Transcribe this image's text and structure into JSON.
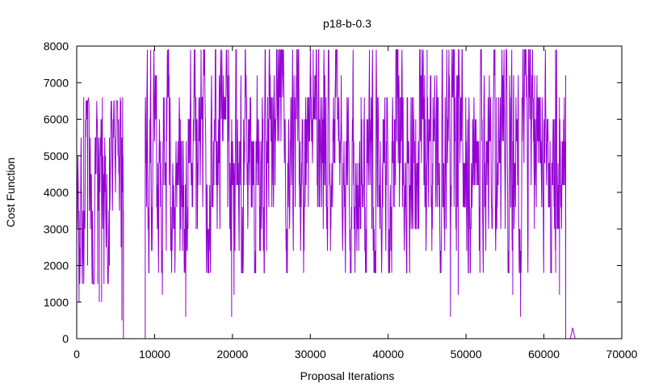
{
  "chart_data": {
    "type": "line",
    "title": "p18-b-0.3",
    "xlabel": "Proposal Iterations",
    "ylabel": "Cost Function",
    "xlim": [
      0,
      70000
    ],
    "ylim": [
      0,
      8000
    ],
    "x_ticks": [
      0,
      10000,
      20000,
      30000,
      40000,
      50000,
      60000,
      70000
    ],
    "y_ticks": [
      0,
      1000,
      2000,
      3000,
      4000,
      5000,
      6000,
      7000,
      8000
    ],
    "x_tick_labels": [
      "0",
      "10000",
      "20000",
      "30000",
      "40000",
      "50000",
      "60000",
      "70000"
    ],
    "y_tick_labels": [
      "0",
      "1000",
      "2000",
      "3000",
      "4000",
      "5000",
      "6000",
      "7000",
      "8000"
    ],
    "grid": false,
    "legend": "none",
    "series_color": "#9400d3",
    "segments": [
      {
        "x_range": [
          0,
          6000
        ],
        "low_spikes": [
          {
            "x": 300,
            "y": 1000
          },
          {
            "x": 900,
            "y": 2000
          },
          {
            "x": 1400,
            "y": 2000
          },
          {
            "x": 2700,
            "y": 1500
          },
          {
            "x": 2900,
            "y": 1000
          },
          {
            "x": 3200,
            "y": 1000
          },
          {
            "x": 3500,
            "y": 1500
          },
          {
            "x": 4200,
            "y": 2000
          },
          {
            "x": 5800,
            "y": 500
          },
          {
            "x": 6000,
            "y": 0
          }
        ],
        "high_spikes": [
          {
            "x": 900,
            "y": 6600
          },
          {
            "x": 1500,
            "y": 6600
          },
          {
            "x": 3300,
            "y": 6600
          },
          {
            "x": 5600,
            "y": 6600
          },
          {
            "x": 5900,
            "y": 6600
          }
        ],
        "band_values": [
          1500,
          2000,
          2500,
          3000,
          3500,
          4000,
          4500,
          5000,
          5500,
          6000,
          6500
        ]
      },
      {
        "x_range": [
          6000,
          8800
        ],
        "flat_values": [
          0,
          0,
          0
        ]
      },
      {
        "x_range": [
          8800,
          62800
        ],
        "low_spikes": [
          {
            "x": 11000,
            "y": 1200
          },
          {
            "x": 14000,
            "y": 600
          },
          {
            "x": 19900,
            "y": 600
          },
          {
            "x": 20200,
            "y": 1200
          },
          {
            "x": 48000,
            "y": 600
          },
          {
            "x": 49000,
            "y": 1200
          },
          {
            "x": 56000,
            "y": 1200
          },
          {
            "x": 57000,
            "y": 600
          },
          {
            "x": 62000,
            "y": 1200
          },
          {
            "x": 62800,
            "y": 1200
          }
        ],
        "high_spikes": [
          {
            "x": 9500,
            "y": 7900
          },
          {
            "x": 19500,
            "y": 7900
          },
          {
            "x": 28500,
            "y": 7900
          },
          {
            "x": 45000,
            "y": 7900
          },
          {
            "x": 48500,
            "y": 7900
          },
          {
            "x": 61500,
            "y": 7900
          }
        ],
        "band_values": [
          1800,
          2400,
          3000,
          3600,
          4200,
          4800,
          5400,
          6000,
          6600,
          7200,
          7900
        ]
      },
      {
        "x_range": [
          62800,
          64000
        ],
        "flat_values": [
          0,
          0,
          0,
          300,
          0
        ]
      }
    ]
  }
}
